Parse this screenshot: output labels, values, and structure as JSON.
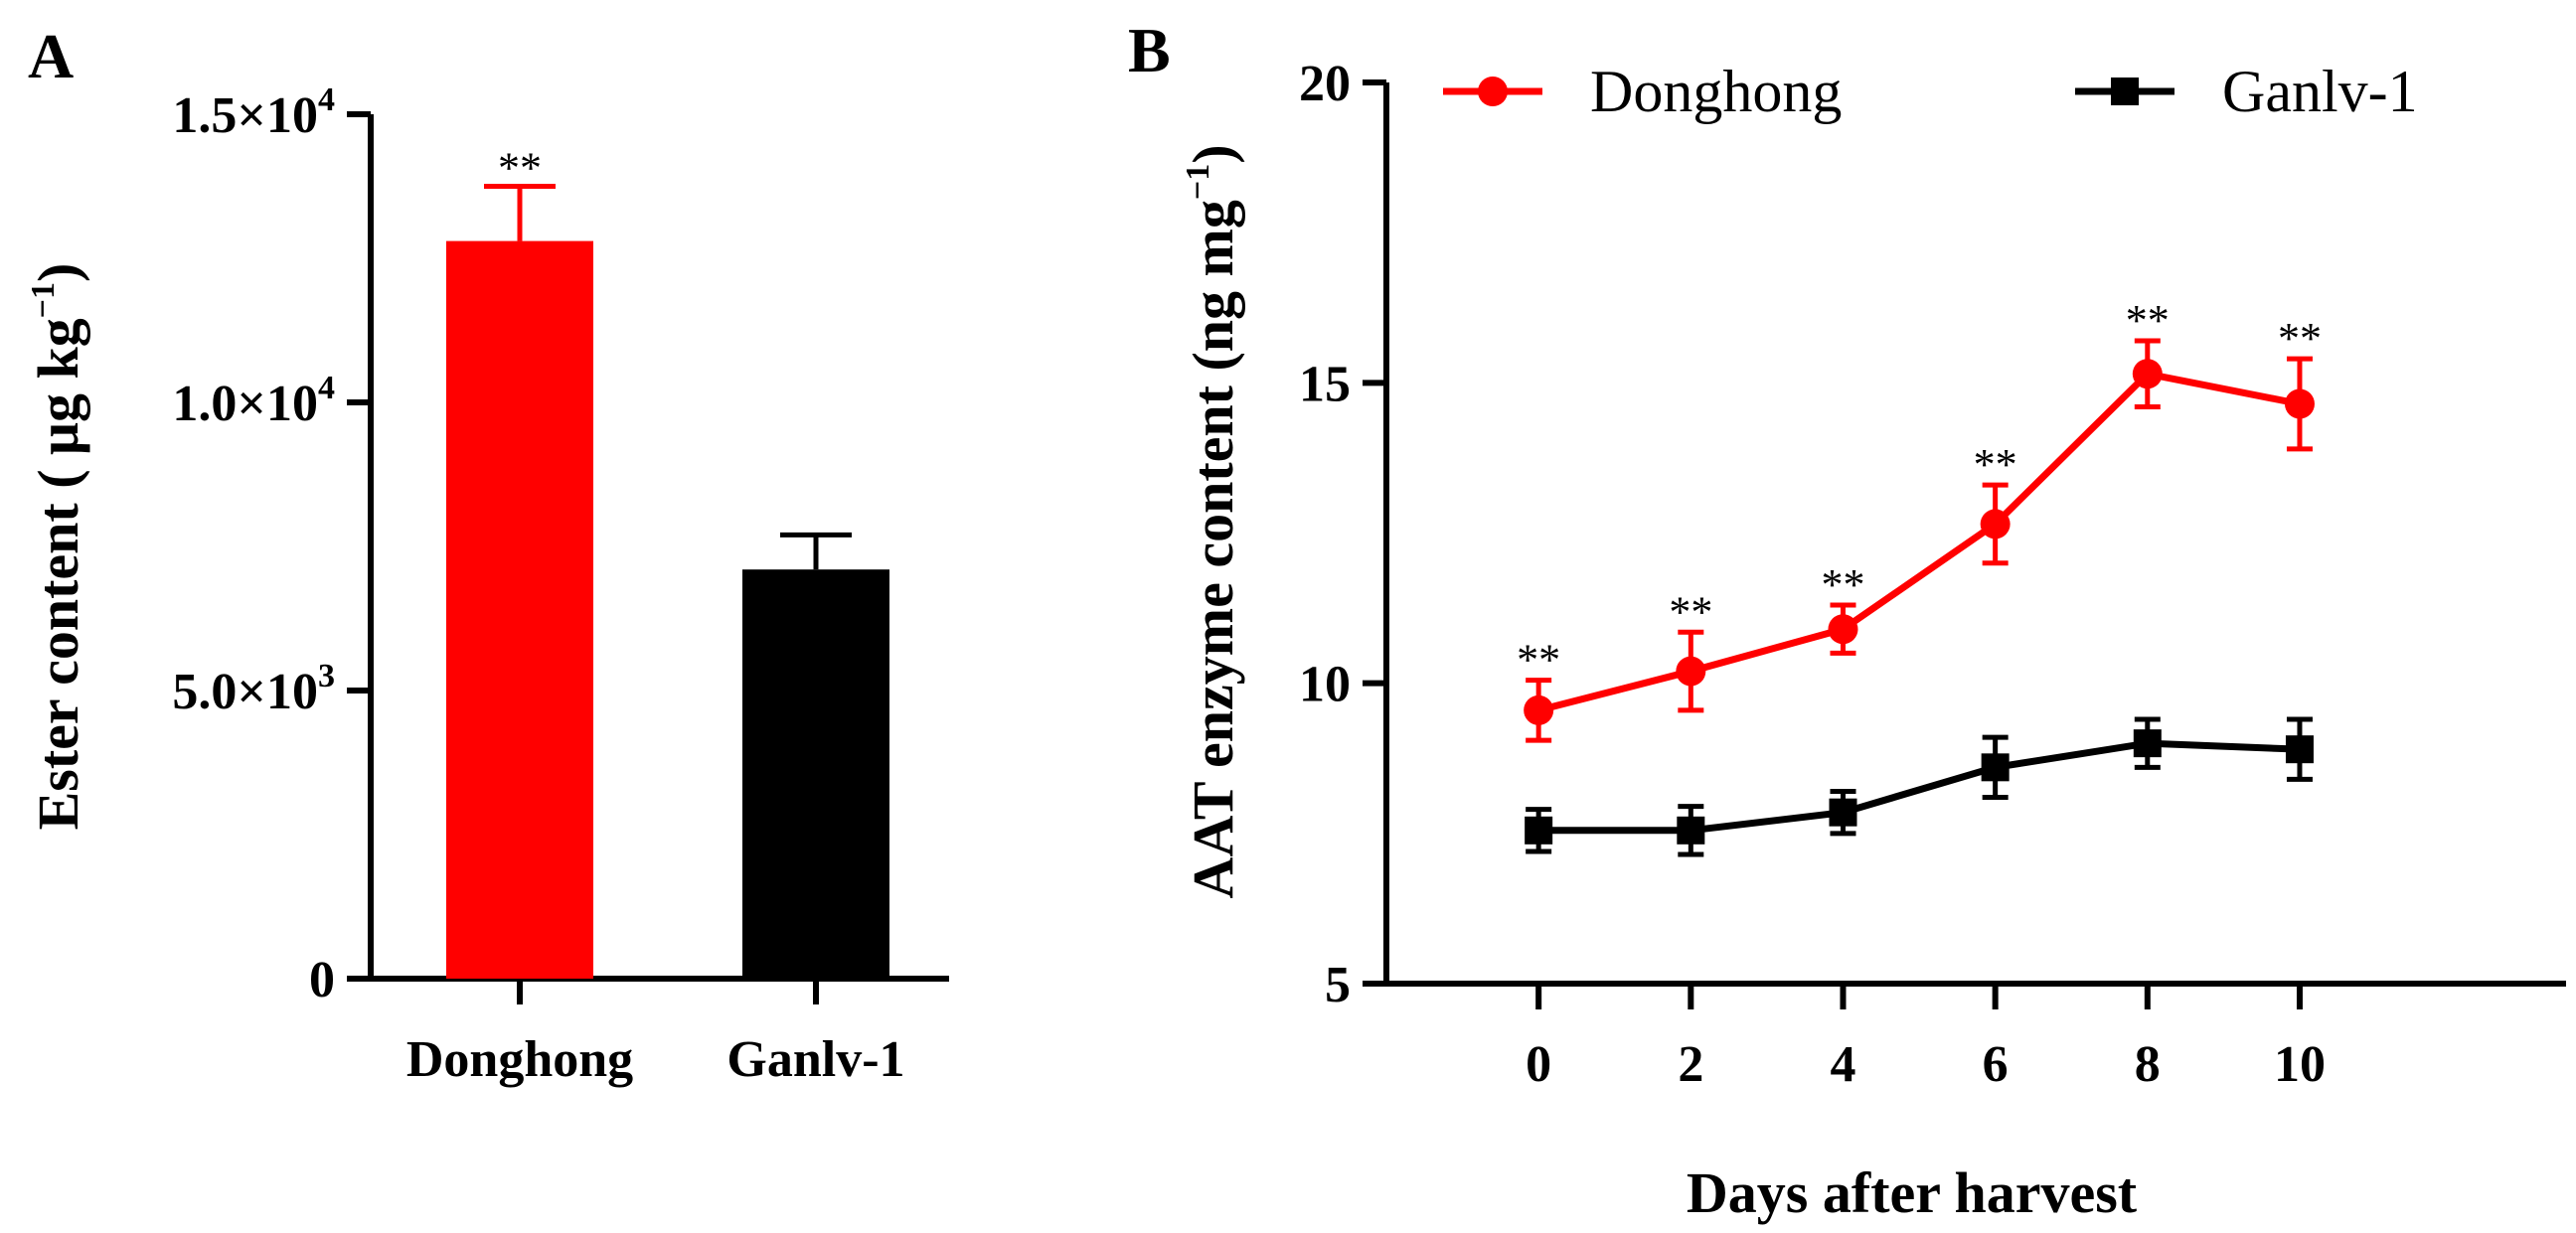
{
  "chart_data": [
    {
      "panel": "A",
      "type": "bar",
      "title": "A",
      "xlabel": "",
      "ylabel": "Ester content ( μg kg",
      "ylabel_sup": "−1",
      "ylabel_close": ")",
      "ylim": [
        0,
        15000
      ],
      "yticks": [
        {
          "value": 0,
          "base": "0",
          "exp": ""
        },
        {
          "value": 5000,
          "base": "5.0×10",
          "exp": "3"
        },
        {
          "value": 10000,
          "base": "1.0×10",
          "exp": "4"
        },
        {
          "value": 15000,
          "base": "1.5×10",
          "exp": "4"
        }
      ],
      "categories": [
        "Donghong",
        "Ganlv-1"
      ],
      "values": [
        12800,
        7100
      ],
      "errors": [
        950,
        600
      ],
      "colors": [
        "#ff0000",
        "#000000"
      ],
      "significance": [
        "**",
        ""
      ]
    },
    {
      "panel": "B",
      "type": "line",
      "title": "B",
      "xlabel": "Days after harvest",
      "ylabel": "AAT enzyme content (ng mg",
      "ylabel_sup": "−1",
      "ylabel_close": ")",
      "xlim": [
        -2,
        13.5
      ],
      "ylim": [
        5,
        20
      ],
      "xticks": [
        0,
        2,
        4,
        6,
        8,
        10
      ],
      "yticks": [
        5,
        10,
        15,
        20
      ],
      "x": [
        0,
        2,
        4,
        6,
        8,
        10
      ],
      "legend_position": "top",
      "series": [
        {
          "name": "Donghong",
          "color": "#ff0000",
          "marker": "circle",
          "values": [
            9.55,
            10.2,
            10.9,
            12.65,
            15.15,
            14.65
          ],
          "errors": [
            0.5,
            0.65,
            0.4,
            0.65,
            0.55,
            0.75
          ],
          "significance": [
            "**",
            "**",
            "**",
            "**",
            "**",
            "**"
          ]
        },
        {
          "name": "Ganlv-1",
          "color": "#000000",
          "marker": "square",
          "values": [
            7.55,
            7.55,
            7.85,
            8.6,
            9.0,
            8.9
          ],
          "errors": [
            0.35,
            0.4,
            0.35,
            0.5,
            0.4,
            0.5
          ],
          "significance": [
            "",
            "",
            "",
            "",
            "",
            ""
          ]
        }
      ]
    }
  ]
}
